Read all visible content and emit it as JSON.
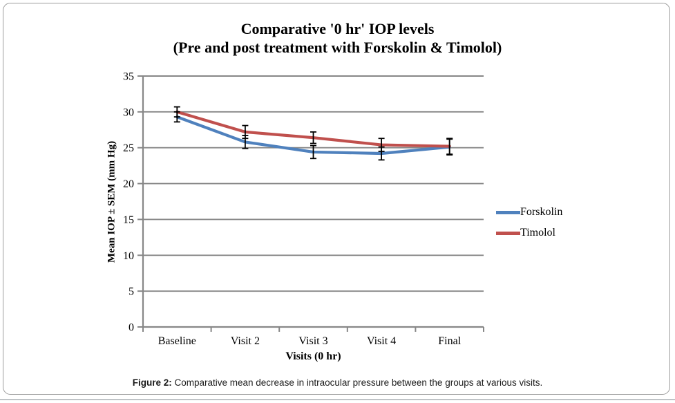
{
  "title": {
    "line1": "Comparative '0 hr' IOP levels",
    "line2": "(Pre and post treatment with Forskolin & Timolol)"
  },
  "caption": {
    "prefix": "Figure 2:",
    "text": " Comparative mean decrease in intraocular pressure between the groups at various visits."
  },
  "colors": {
    "forskolin": "#4F81BD",
    "timolol": "#C0504D",
    "grid": "#878787",
    "axis": "#878787",
    "error_bar": "#000000",
    "panel_border": "#9b9b9b"
  },
  "chart_data": {
    "type": "line",
    "title": "Comparative '0 hr' IOP levels (Pre and post treatment with Forskolin & Timolol)",
    "xlabel": "Visits (0 hr)",
    "ylabel": "Mean IOP ± SEM (mm Hg)",
    "categories": [
      "Baseline",
      "Visit 2",
      "Visit 3",
      "Visit 4",
      "Final"
    ],
    "series": [
      {
        "name": "Forskolin",
        "color": "#4F81BD",
        "values": [
          29.3,
          25.8,
          24.4,
          24.2,
          25.1
        ],
        "sem": [
          0.7,
          0.9,
          0.9,
          0.9,
          1.1
        ]
      },
      {
        "name": "Timolol",
        "color": "#C0504D",
        "values": [
          30.0,
          27.2,
          26.4,
          25.4,
          25.2
        ],
        "sem": [
          0.7,
          0.9,
          0.8,
          0.9,
          1.1
        ]
      }
    ],
    "ylim": [
      0,
      35
    ],
    "yticks": [
      0,
      5,
      10,
      15,
      20,
      25,
      30,
      35
    ],
    "grid": true,
    "error_bars": true,
    "legend_position": "right"
  }
}
